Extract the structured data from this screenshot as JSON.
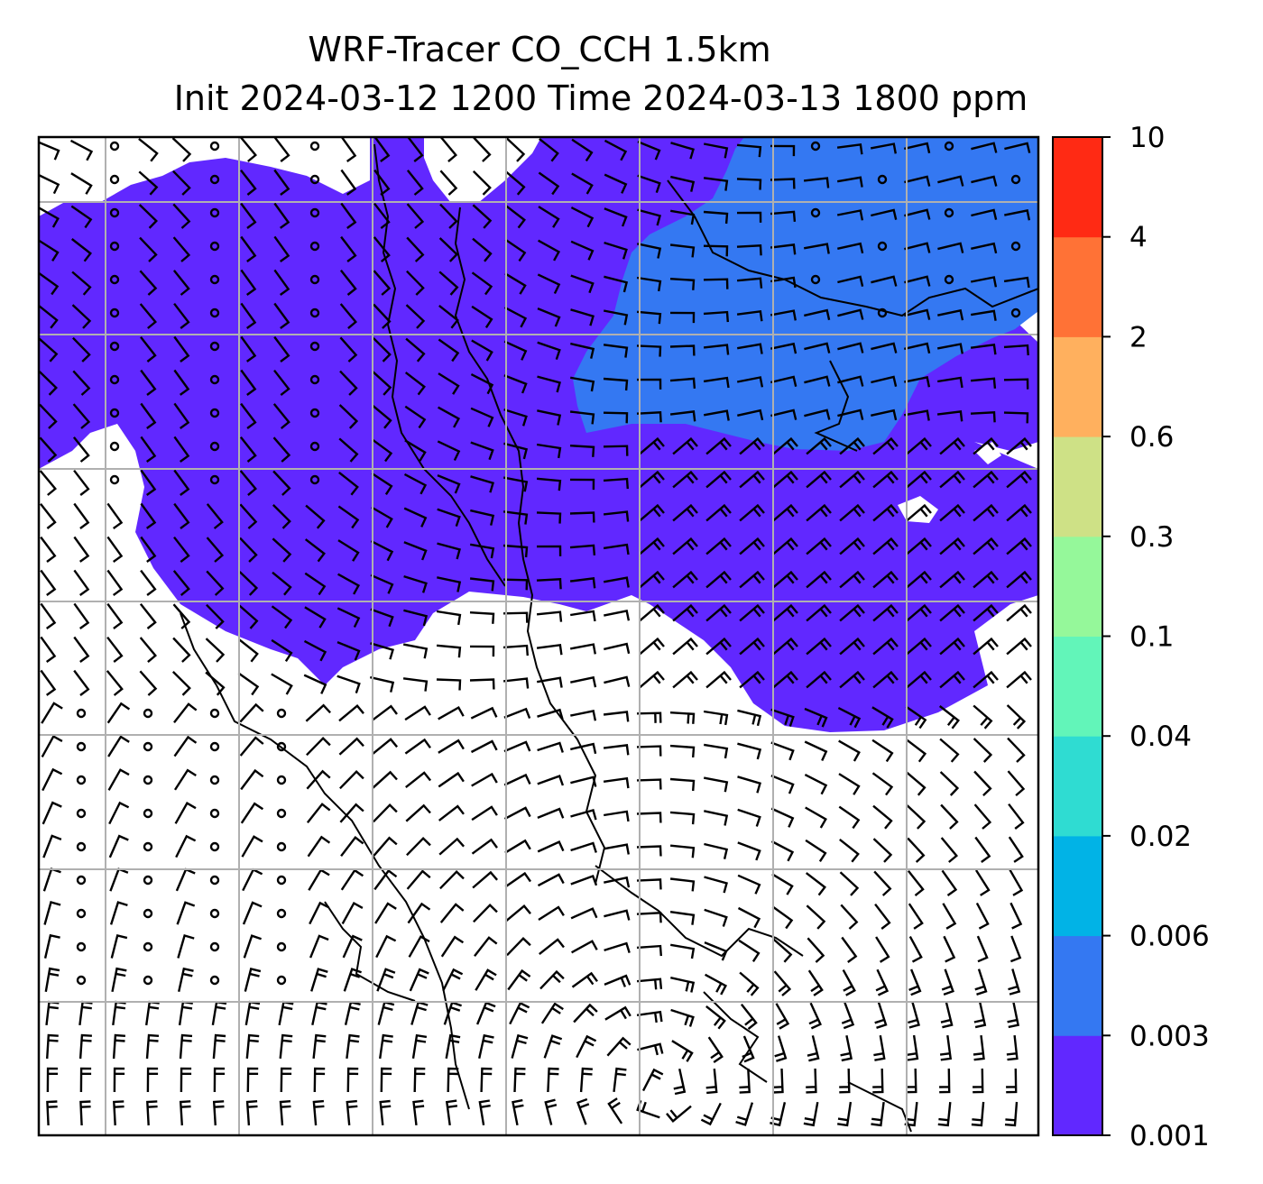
{
  "figure": {
    "title_line1": "WRF-Tracer CO_CCH 1.5km",
    "title_line2": "Init 2024-03-12 1200 Time 2024-03-13 1800 ppm"
  },
  "colorbar": {
    "tick_labels": [
      "0.001",
      "0.003",
      "0.006",
      "0.02",
      "0.04",
      "0.1",
      "0.3",
      "0.6",
      "2",
      "4",
      "10"
    ],
    "bands": [
      {
        "from": "0.001",
        "to": "0.003",
        "color": "#6128ff"
      },
      {
        "from": "0.003",
        "to": "0.006",
        "color": "#3478f2"
      },
      {
        "from": "0.006",
        "to": "0.02",
        "color": "#01b3e6"
      },
      {
        "from": "0.02",
        "to": "0.04",
        "color": "#2fdcd2"
      },
      {
        "from": "0.04",
        "to": "0.1",
        "color": "#62f5b9"
      },
      {
        "from": "0.1",
        "to": "0.3",
        "color": "#95f89a"
      },
      {
        "from": "0.3",
        "to": "0.6",
        "color": "#cee186"
      },
      {
        "from": "0.6",
        "to": "2",
        "color": "#ffb05e"
      },
      {
        "from": "2",
        "to": "4",
        "color": "#ff7236"
      },
      {
        "from": "4",
        "to": "10",
        "color": "#ff2a14"
      }
    ]
  },
  "map": {
    "field_colors": {
      "low": "#6128ff",
      "mid": "#3478f2",
      "none": "#ffffff"
    },
    "gridlines": true,
    "wind_barbs": true,
    "coastlines": true
  }
}
